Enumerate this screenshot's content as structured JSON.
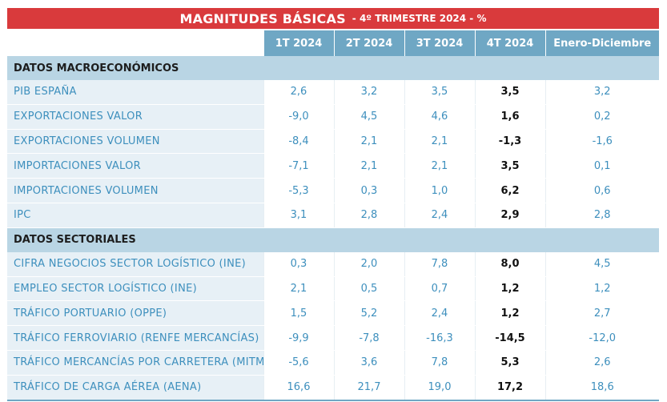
{
  "title": {
    "main": "MAGNITUDES BÁSICAS",
    "sub": "- 4º TRIMESTRE 2024 - %"
  },
  "columns": [
    "1T 2024",
    "2T 2024",
    "3T 2024",
    "4T 2024",
    "Enero-Diciembre"
  ],
  "sections": [
    {
      "title": "DATOS MACROECONÓMICOS",
      "rows": [
        {
          "label": "PIB ESPAÑA",
          "values": [
            "2,6",
            "3,2",
            "3,5",
            "3,5",
            "3,2"
          ]
        },
        {
          "label": "EXPORTACIONES VALOR",
          "values": [
            "-9,0",
            "4,5",
            "4,6",
            "1,6",
            "0,2"
          ]
        },
        {
          "label": "EXPORTACIONES VOLUMEN",
          "values": [
            "-8,4",
            "2,1",
            "2,1",
            "-1,3",
            "-1,6"
          ]
        },
        {
          "label": "IMPORTACIONES VALOR",
          "values": [
            "-7,1",
            "2,1",
            "2,1",
            "3,5",
            "0,1"
          ]
        },
        {
          "label": "IMPORTACIONES VOLUMEN",
          "values": [
            "-5,3",
            "0,3",
            "1,0",
            "6,2",
            "0,6"
          ]
        },
        {
          "label": "IPC",
          "values": [
            "3,1",
            "2,8",
            "2,4",
            "2,9",
            "2,8"
          ]
        }
      ]
    },
    {
      "title": "DATOS SECTORIALES",
      "rows": [
        {
          "label": "CIFRA NEGOCIOS SECTOR LOGÍSTICO (INE)",
          "values": [
            "0,3",
            "2,0",
            "7,8",
            "8,0",
            "4,5"
          ]
        },
        {
          "label": "EMPLEO SECTOR LOGÍSTICO (INE)",
          "values": [
            "2,1",
            "0,5",
            "0,7",
            "1,2",
            "1,2"
          ]
        },
        {
          "label": "TRÁFICO PORTUARIO (OPPE)",
          "values": [
            "1,5",
            "5,2",
            "2,4",
            "1,2",
            "2,7"
          ]
        },
        {
          "label": "TRÁFICO FERROVIARIO (RENFE MERCANCÍAS)",
          "values": [
            "-9,9",
            "-7,8",
            "-16,3",
            "-14,5",
            "-12,0"
          ]
        },
        {
          "label": "TRÁFICO MERCANCÍAS POR CARRETERA (MITMA)",
          "values": [
            "-5,6",
            "3,6",
            "7,8",
            "5,3",
            "2,6"
          ]
        },
        {
          "label": "TRÁFICO DE CARGA AÉREA (AENA)",
          "values": [
            "16,6",
            "21,7",
            "19,0",
            "17,2",
            "18,6"
          ]
        }
      ]
    }
  ]
}
